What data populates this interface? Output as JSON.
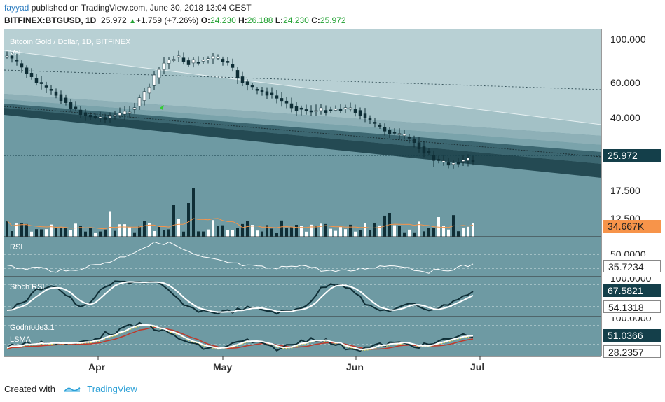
{
  "header": {
    "user": "fayyad",
    "published": "published on TradingView.com, June 30, 2018 13:04 CEST",
    "symbol": "BITFINEX:BTGUSD, 1D",
    "last": "25.972",
    "change": "+1.759 (+7.26%)",
    "open_label": "O:",
    "open": "24.230",
    "high_label": "H:",
    "high": "26.188",
    "low_label": "L:",
    "low": "24.230",
    "close_label": "C:",
    "close": "25.972"
  },
  "panes": {
    "main_title": "Bitcoin Gold / Dollar, 1D, BITFINEX",
    "vol_label": "Vol",
    "rsi_label": "RSI",
    "stoch_label": "Stoch RSI",
    "godmode_label": "Godmode3.1",
    "lsma_label": "LSMA"
  },
  "axis": {
    "price_ticks": [
      "100.000",
      "60.000",
      "40.000",
      "17.500",
      "12.500"
    ],
    "last_price": "25.972",
    "volume_tag": "34.667K",
    "rsi_tick": "50.0000",
    "rsi_value": "35.7234",
    "stoch_tick": "100.0000",
    "stoch_k": "67.5821",
    "stoch_d": "54.1318",
    "gm_tick": "100.0000",
    "gm_value": "51.0366",
    "gm_value2": "28.2357",
    "months": [
      "Apr",
      "May",
      "Jun",
      "Jul"
    ]
  },
  "colors": {
    "pane_bg": "#6e9aa3",
    "channel_light": "#b8d0d4",
    "channel_dark": "#244a53",
    "bull_candle": "#ffffff",
    "bear_candle": "#0f2e36",
    "vol_ma": "#f7944a",
    "stoch_k": "#0f2e36",
    "stoch_d": "#ffffff",
    "gm_red": "#c0392b",
    "gm_yellow": "#f1e15b"
  },
  "footer": {
    "created": "Created with",
    "brand": "TradingView"
  }
}
